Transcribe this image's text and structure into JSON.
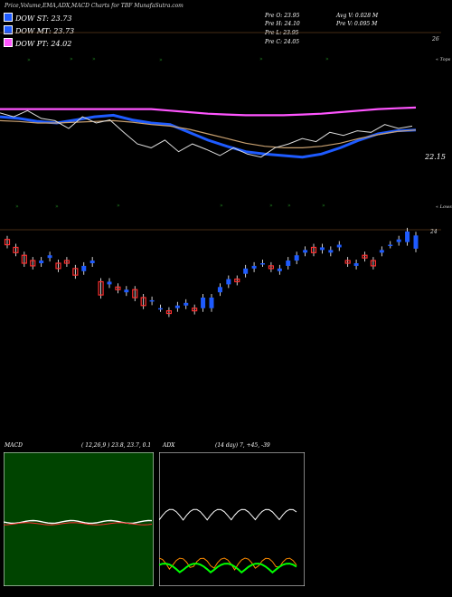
{
  "title": "Price,Volume,EMA,ADX,MACD Charts for TBF MunafaSutra.com",
  "legend": [
    {
      "label": "DOW ST: 23.73",
      "color": "#1e5bff"
    },
    {
      "label": "DOW MT: 23.73",
      "color": "#1e5bff"
    },
    {
      "label": "DOW PT: 24.02",
      "color": "#ff55ff"
    }
  ],
  "stats": {
    "pre_o": "Pre   O: 23.95",
    "pre_h": "Pre   H: 24.10",
    "pre_l": "Pre   L: 23.95",
    "pre_c": "Pre   C: 24.05",
    "avg_v": "Avg V: 0.028 M",
    "pre_v": "Pre   V: 0.095 M"
  },
  "price_axis": {
    "top_label": "26",
    "mid_label": "22.15",
    "low_label": "24"
  },
  "notes": {
    "upper": "« Tops",
    "lower": "« Lows"
  },
  "colors": {
    "bull": "#1e5bff",
    "bear": "#ff3030",
    "ema_long": "#ff55ff",
    "tops": "#228b22"
  },
  "chart_data": {
    "type": "line",
    "title": "Price,Volume,EMA,ADX,MACD Charts for TBF MunafaSutra.com",
    "series": [
      {
        "name": "DOW ST",
        "values": [
          23.9,
          23.88,
          23.84,
          23.82,
          23.86,
          23.9,
          23.92,
          23.86,
          23.82,
          23.8,
          23.7,
          23.6,
          23.52,
          23.45,
          23.42,
          23.4,
          23.38,
          23.42,
          23.5,
          23.6,
          23.68,
          23.72,
          23.73
        ]
      },
      {
        "name": "DOW MT",
        "values": [
          23.85,
          23.84,
          23.82,
          23.82,
          23.83,
          23.84,
          23.85,
          23.83,
          23.8,
          23.78,
          23.74,
          23.68,
          23.62,
          23.56,
          23.52,
          23.5,
          23.5,
          23.52,
          23.56,
          23.62,
          23.67,
          23.71,
          23.73
        ]
      },
      {
        "name": "DOW PT",
        "values": [
          24.0,
          24.0,
          24.0,
          24.0,
          24.0,
          24.0,
          24.0,
          24.0,
          24.0,
          23.98,
          23.96,
          23.94,
          23.93,
          23.92,
          23.92,
          23.92,
          23.93,
          23.94,
          23.96,
          23.98,
          24.0,
          24.01,
          24.02
        ]
      }
    ]
  },
  "candles": [
    {
      "o": 24.02,
      "c": 23.98
    },
    {
      "o": 23.96,
      "c": 23.92
    },
    {
      "o": 23.9,
      "c": 23.84
    },
    {
      "o": 23.86,
      "c": 23.82
    },
    {
      "o": 23.84,
      "c": 23.86
    },
    {
      "o": 23.88,
      "c": 23.9
    },
    {
      "o": 23.84,
      "c": 23.8
    },
    {
      "o": 23.86,
      "c": 23.84
    },
    {
      "o": 23.8,
      "c": 23.75
    },
    {
      "o": 23.78,
      "c": 23.82
    },
    {
      "o": 23.84,
      "c": 23.86
    },
    {
      "o": 23.7,
      "c": 23.6
    },
    {
      "o": 23.68,
      "c": 23.7
    },
    {
      "o": 23.66,
      "c": 23.64
    },
    {
      "o": 23.62,
      "c": 23.64
    },
    {
      "o": 23.64,
      "c": 23.58
    },
    {
      "o": 23.58,
      "c": 23.52
    },
    {
      "o": 23.55,
      "c": 23.56
    },
    {
      "o": 23.5,
      "c": 23.5
    },
    {
      "o": 23.48,
      "c": 23.46
    },
    {
      "o": 23.5,
      "c": 23.52
    },
    {
      "o": 23.52,
      "c": 23.54
    },
    {
      "o": 23.5,
      "c": 23.48
    },
    {
      "o": 23.5,
      "c": 23.58
    },
    {
      "o": 23.5,
      "c": 23.58
    },
    {
      "o": 23.62,
      "c": 23.66
    },
    {
      "o": 23.68,
      "c": 23.72
    },
    {
      "o": 23.72,
      "c": 23.7
    },
    {
      "o": 23.76,
      "c": 23.8
    },
    {
      "o": 23.8,
      "c": 23.82
    },
    {
      "o": 23.84,
      "c": 23.84
    },
    {
      "o": 23.82,
      "c": 23.8
    },
    {
      "o": 23.78,
      "c": 23.8
    },
    {
      "o": 23.82,
      "c": 23.86
    },
    {
      "o": 23.86,
      "c": 23.9
    },
    {
      "o": 23.92,
      "c": 23.94
    },
    {
      "o": 23.96,
      "c": 23.92
    },
    {
      "o": 23.94,
      "c": 23.96
    },
    {
      "o": 23.92,
      "c": 23.94
    },
    {
      "o": 23.96,
      "c": 23.98
    },
    {
      "o": 23.86,
      "c": 23.84
    },
    {
      "o": 23.82,
      "c": 23.84
    },
    {
      "o": 23.9,
      "c": 23.88
    },
    {
      "o": 23.86,
      "c": 23.82
    },
    {
      "o": 23.92,
      "c": 23.94
    },
    {
      "o": 23.98,
      "c": 23.98
    },
    {
      "o": 24.0,
      "c": 24.02
    },
    {
      "o": 24.0,
      "c": 24.08
    },
    {
      "o": 23.95,
      "c": 24.05
    }
  ],
  "macd_panel": {
    "label": "MACD",
    "params": "( 12,26,9 ) 23.8, 23.7, 0.1"
  },
  "adx_panel": {
    "label": "ADX",
    "params": "(14  day) 7, +45, -39"
  }
}
